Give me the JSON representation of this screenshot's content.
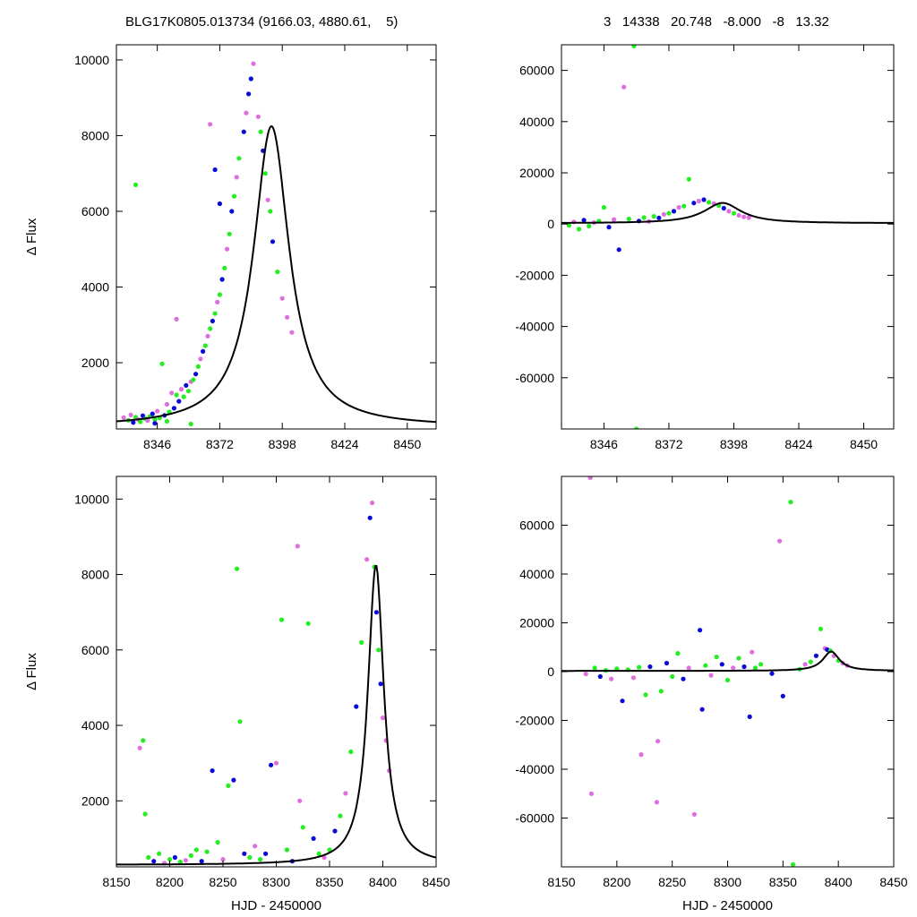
{
  "header": {
    "left": "BLG17K0805.013734 (9166.03, 4880.61,    5)",
    "right": "3   14338   20.748   -8.000   -8   13.32"
  },
  "colors": {
    "series_a": "#e06ee0",
    "series_b": "#0a0ad8",
    "series_c": "#22ee22",
    "model": "#000000"
  },
  "chart_data": [
    {
      "type": "scatter",
      "title": "",
      "xlabel": "",
      "ylabel": "Δ Flux",
      "xlim": [
        8329,
        8462
      ],
      "ylim": [
        250,
        10400
      ],
      "xticks": [
        8346,
        8372,
        8398,
        8424,
        8450
      ],
      "yticks": [
        2000,
        4000,
        6000,
        8000,
        10000
      ],
      "grid": false,
      "model_curve": {
        "t0": 8393.5,
        "peak": 8250,
        "base": 300,
        "width": 9.0
      },
      "points": [
        [
          8332,
          550,
          0
        ],
        [
          8334,
          480,
          2
        ],
        [
          8335,
          620,
          0
        ],
        [
          8336,
          420,
          1
        ],
        [
          8337,
          560,
          2
        ],
        [
          8338,
          500,
          0
        ],
        [
          8339,
          440,
          2
        ],
        [
          8340,
          600,
          1
        ],
        [
          8341,
          520,
          2
        ],
        [
          8342,
          470,
          0
        ],
        [
          8343,
          580,
          2
        ],
        [
          8344,
          650,
          1
        ],
        [
          8345,
          500,
          2
        ],
        [
          8346,
          720,
          0
        ],
        [
          8347,
          540,
          2
        ],
        [
          8348,
          1970,
          2
        ],
        [
          8349,
          610,
          1
        ],
        [
          8350,
          900,
          0
        ],
        [
          8351,
          700,
          2
        ],
        [
          8352,
          1200,
          0
        ],
        [
          8353,
          800,
          1
        ],
        [
          8354,
          1150,
          2
        ],
        [
          8355,
          980,
          1
        ],
        [
          8356,
          1300,
          0
        ],
        [
          8357,
          1100,
          2
        ],
        [
          8358,
          1400,
          1
        ],
        [
          8359,
          1250,
          2
        ],
        [
          8360,
          1500,
          0
        ],
        [
          8361,
          1550,
          2
        ],
        [
          8362,
          1700,
          1
        ],
        [
          8363,
          1900,
          2
        ],
        [
          8364,
          2100,
          0
        ],
        [
          8365,
          2300,
          1
        ],
        [
          8366,
          2450,
          2
        ],
        [
          8367,
          2700,
          0
        ],
        [
          8368,
          2900,
          2
        ],
        [
          8369,
          3100,
          1
        ],
        [
          8370,
          3300,
          2
        ],
        [
          8371,
          3600,
          0
        ],
        [
          8372,
          3800,
          2
        ],
        [
          8373,
          4200,
          1
        ],
        [
          8374,
          4500,
          2
        ],
        [
          8375,
          5000,
          0
        ],
        [
          8376,
          5400,
          2
        ],
        [
          8377,
          6000,
          1
        ],
        [
          8378,
          6400,
          2
        ],
        [
          8379,
          6900,
          0
        ],
        [
          8380,
          7400,
          2
        ],
        [
          8382,
          8100,
          1
        ],
        [
          8383,
          8600,
          0
        ],
        [
          8384,
          9100,
          1
        ],
        [
          8385,
          9500,
          1
        ],
        [
          8386,
          9900,
          0
        ],
        [
          8388,
          8500,
          0
        ],
        [
          8389,
          8100,
          2
        ],
        [
          8390,
          7600,
          1
        ],
        [
          8391,
          7000,
          2
        ],
        [
          8392,
          6300,
          0
        ],
        [
          8393,
          6000,
          2
        ],
        [
          8394,
          5200,
          1
        ],
        [
          8396,
          4400,
          2
        ],
        [
          8398,
          3700,
          0
        ],
        [
          8400,
          3200,
          0
        ],
        [
          8402,
          2800,
          0
        ],
        [
          8337,
          6700,
          2
        ],
        [
          8354,
          3150,
          0
        ],
        [
          8368,
          8300,
          0
        ],
        [
          8370,
          7100,
          1
        ],
        [
          8372,
          6200,
          1
        ],
        [
          8345,
          400,
          1
        ],
        [
          8350,
          450,
          2
        ],
        [
          8360,
          380,
          2
        ]
      ]
    },
    {
      "type": "scatter",
      "title": "",
      "xlabel": "",
      "ylabel": "",
      "xlim": [
        8329,
        8462
      ],
      "ylim": [
        -80000,
        70000
      ],
      "xticks": [
        8346,
        8372,
        8398,
        8424,
        8450
      ],
      "yticks": [
        -60000,
        -40000,
        -20000,
        0,
        20000,
        40000,
        60000
      ],
      "grid": false,
      "model_curve": {
        "t0": 8393.5,
        "peak": 8250,
        "base": 300,
        "width": 9.0
      },
      "points": [
        [
          8332,
          -500,
          2
        ],
        [
          8334,
          800,
          0
        ],
        [
          8336,
          -2000,
          2
        ],
        [
          8338,
          1500,
          1
        ],
        [
          8340,
          -800,
          2
        ],
        [
          8342,
          600,
          0
        ],
        [
          8344,
          1200,
          2
        ],
        [
          8346,
          6500,
          2
        ],
        [
          8348,
          -1200,
          1
        ],
        [
          8350,
          1800,
          0
        ],
        [
          8352,
          -10000,
          1
        ],
        [
          8354,
          53500,
          0
        ],
        [
          8356,
          2000,
          2
        ],
        [
          8358,
          69500,
          2
        ],
        [
          8359,
          -80000,
          2
        ],
        [
          8360,
          1200,
          1
        ],
        [
          8362,
          2500,
          2
        ],
        [
          8364,
          1000,
          0
        ],
        [
          8366,
          3000,
          2
        ],
        [
          8368,
          2400,
          1
        ],
        [
          8370,
          3800,
          0
        ],
        [
          8372,
          4200,
          2
        ],
        [
          8374,
          5000,
          1
        ],
        [
          8376,
          6500,
          0
        ],
        [
          8378,
          7000,
          2
        ],
        [
          8380,
          17500,
          2
        ],
        [
          8382,
          8200,
          1
        ],
        [
          8384,
          9000,
          0
        ],
        [
          8386,
          9500,
          1
        ],
        [
          8388,
          8500,
          2
        ],
        [
          8390,
          8000,
          0
        ],
        [
          8392,
          7200,
          2
        ],
        [
          8394,
          6200,
          1
        ],
        [
          8396,
          5000,
          0
        ],
        [
          8398,
          4200,
          2
        ],
        [
          8400,
          3400,
          0
        ],
        [
          8402,
          2800,
          0
        ],
        [
          8404,
          2500,
          0
        ]
      ]
    },
    {
      "type": "scatter",
      "title": "",
      "xlabel": "HJD - 2450000",
      "ylabel": "Δ Flux",
      "xlim": [
        8150,
        8450
      ],
      "ylim": [
        250,
        10600
      ],
      "xticks": [
        8150,
        8200,
        8250,
        8300,
        8350,
        8400,
        8450
      ],
      "yticks": [
        2000,
        4000,
        6000,
        8000,
        10000
      ],
      "grid": false,
      "model_curve": {
        "t0": 8393.5,
        "peak": 8250,
        "base": 300,
        "width": 9.0
      },
      "points": [
        [
          8172,
          3400,
          0
        ],
        [
          8175,
          3600,
          2
        ],
        [
          8177,
          1650,
          2
        ],
        [
          8180,
          500,
          2
        ],
        [
          8185,
          400,
          1
        ],
        [
          8190,
          600,
          2
        ],
        [
          8195,
          350,
          0
        ],
        [
          8200,
          450,
          2
        ],
        [
          8205,
          500,
          1
        ],
        [
          8210,
          380,
          2
        ],
        [
          8215,
          420,
          0
        ],
        [
          8220,
          550,
          2
        ],
        [
          8225,
          700,
          2
        ],
        [
          8230,
          400,
          1
        ],
        [
          8235,
          650,
          2
        ],
        [
          8240,
          2800,
          1
        ],
        [
          8245,
          900,
          2
        ],
        [
          8250,
          450,
          0
        ],
        [
          8255,
          2400,
          2
        ],
        [
          8260,
          2550,
          1
        ],
        [
          8263,
          8150,
          2
        ],
        [
          8266,
          4100,
          2
        ],
        [
          8270,
          600,
          1
        ],
        [
          8275,
          500,
          2
        ],
        [
          8280,
          800,
          0
        ],
        [
          8285,
          450,
          2
        ],
        [
          8290,
          600,
          1
        ],
        [
          8295,
          2950,
          1
        ],
        [
          8300,
          3000,
          0
        ],
        [
          8305,
          6800,
          2
        ],
        [
          8310,
          700,
          2
        ],
        [
          8315,
          400,
          1
        ],
        [
          8320,
          8750,
          0
        ],
        [
          8322,
          2000,
          0
        ],
        [
          8325,
          1300,
          2
        ],
        [
          8330,
          6700,
          2
        ],
        [
          8335,
          1000,
          1
        ],
        [
          8340,
          600,
          2
        ],
        [
          8345,
          500,
          0
        ],
        [
          8350,
          700,
          2
        ],
        [
          8355,
          1200,
          1
        ],
        [
          8360,
          1600,
          2
        ],
        [
          8365,
          2200,
          0
        ],
        [
          8370,
          3300,
          2
        ],
        [
          8375,
          4500,
          1
        ],
        [
          8380,
          6200,
          2
        ],
        [
          8385,
          8400,
          0
        ],
        [
          8388,
          9500,
          1
        ],
        [
          8390,
          9900,
          0
        ],
        [
          8392,
          8200,
          2
        ],
        [
          8394,
          7000,
          1
        ],
        [
          8396,
          6000,
          2
        ],
        [
          8398,
          5100,
          1
        ],
        [
          8400,
          4200,
          0
        ],
        [
          8403,
          3600,
          0
        ],
        [
          8406,
          2800,
          0
        ]
      ]
    },
    {
      "type": "scatter",
      "title": "",
      "xlabel": "HJD - 2450000",
      "ylabel": "",
      "xlim": [
        8150,
        8450
      ],
      "ylim": [
        -80000,
        80000
      ],
      "xticks": [
        8150,
        8200,
        8250,
        8300,
        8350,
        8400,
        8450
      ],
      "yticks": [
        -60000,
        -40000,
        -20000,
        0,
        20000,
        40000,
        60000
      ],
      "grid": false,
      "model_curve": {
        "t0": 8393.5,
        "peak": 8250,
        "base": 300,
        "width": 9.0
      },
      "points": [
        [
          8172,
          -1000,
          0
        ],
        [
          8176,
          79500,
          0
        ],
        [
          8177,
          -50000,
          0
        ],
        [
          8180,
          1500,
          2
        ],
        [
          8185,
          -2000,
          1
        ],
        [
          8190,
          500,
          2
        ],
        [
          8195,
          -3000,
          0
        ],
        [
          8200,
          1200,
          2
        ],
        [
          8205,
          -12000,
          1
        ],
        [
          8210,
          800,
          2
        ],
        [
          8215,
          -2500,
          0
        ],
        [
          8220,
          1800,
          2
        ],
        [
          8222,
          -34000,
          0
        ],
        [
          8226,
          -9500,
          2
        ],
        [
          8230,
          2000,
          1
        ],
        [
          8236,
          -53500,
          0
        ],
        [
          8237,
          -28500,
          0
        ],
        [
          8240,
          -8000,
          2
        ],
        [
          8245,
          3500,
          1
        ],
        [
          8250,
          -2000,
          2
        ],
        [
          8255,
          7500,
          2
        ],
        [
          8260,
          -3000,
          1
        ],
        [
          8265,
          1500,
          0
        ],
        [
          8270,
          -58500,
          0
        ],
        [
          8275,
          17000,
          1
        ],
        [
          8277,
          -15500,
          1
        ],
        [
          8280,
          2500,
          2
        ],
        [
          8285,
          -1500,
          0
        ],
        [
          8290,
          6000,
          2
        ],
        [
          8295,
          3000,
          1
        ],
        [
          8300,
          -3500,
          2
        ],
        [
          8305,
          1500,
          0
        ],
        [
          8310,
          5500,
          2
        ],
        [
          8315,
          2000,
          1
        ],
        [
          8320,
          -18500,
          1
        ],
        [
          8322,
          8000,
          0
        ],
        [
          8325,
          1500,
          2
        ],
        [
          8330,
          3000,
          2
        ],
        [
          8340,
          -800,
          1
        ],
        [
          8347,
          53500,
          0
        ],
        [
          8350,
          -10000,
          1
        ],
        [
          8357,
          69500,
          2
        ],
        [
          8359,
          -79000,
          2
        ],
        [
          8365,
          1000,
          2
        ],
        [
          8370,
          3000,
          0
        ],
        [
          8375,
          4000,
          2
        ],
        [
          8380,
          6500,
          1
        ],
        [
          8384,
          17500,
          2
        ],
        [
          8388,
          9500,
          0
        ],
        [
          8390,
          9000,
          1
        ],
        [
          8393,
          8500,
          2
        ],
        [
          8396,
          6500,
          0
        ],
        [
          8400,
          4500,
          2
        ],
        [
          8404,
          3500,
          0
        ],
        [
          8408,
          2500,
          0
        ]
      ]
    }
  ]
}
